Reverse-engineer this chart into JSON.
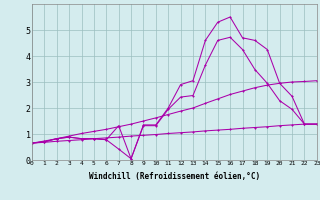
{
  "background_color": "#d4ecee",
  "line_color": "#aa00aa",
  "grid_color": "#9bbfc0",
  "x_min": 0,
  "x_max": 23,
  "y_min": 0,
  "y_max": 6,
  "xlabel": "Windchill (Refroidissement éolien,°C)",
  "xlabel_fontsize": 5.5,
  "ytick_fontsize": 6,
  "xtick_fontsize": 4.5,
  "series1_x": [
    0,
    1,
    2,
    3,
    4,
    5,
    6,
    7,
    8,
    9,
    10,
    11,
    12,
    13,
    14,
    15,
    16,
    17,
    18,
    19,
    20,
    21,
    22,
    23
  ],
  "series1_y": [
    0.65,
    0.7,
    0.82,
    0.88,
    0.82,
    0.82,
    0.78,
    0.42,
    0.05,
    1.35,
    1.35,
    2.0,
    2.9,
    3.05,
    4.6,
    5.3,
    5.5,
    4.7,
    4.6,
    4.25,
    2.95,
    2.45,
    1.38,
    1.38
  ],
  "series2_x": [
    0,
    1,
    2,
    3,
    4,
    5,
    6,
    7,
    8,
    9,
    10,
    11,
    12,
    13,
    14,
    15,
    16,
    17,
    18,
    19,
    20,
    21,
    22,
    23
  ],
  "series2_y": [
    0.65,
    0.7,
    0.82,
    0.88,
    0.82,
    0.82,
    0.78,
    1.32,
    0.05,
    1.32,
    1.32,
    1.95,
    2.42,
    2.48,
    3.65,
    4.6,
    4.72,
    4.25,
    3.48,
    2.95,
    2.28,
    1.95,
    1.38,
    1.38
  ],
  "series3_x": [
    0,
    1,
    2,
    3,
    4,
    5,
    6,
    7,
    8,
    9,
    10,
    11,
    12,
    13,
    14,
    15,
    16,
    17,
    18,
    19,
    20,
    21,
    22,
    23
  ],
  "series3_y": [
    0.65,
    0.68,
    0.72,
    0.75,
    0.78,
    0.82,
    0.85,
    0.88,
    0.92,
    0.95,
    0.98,
    1.02,
    1.05,
    1.08,
    1.12,
    1.15,
    1.18,
    1.22,
    1.25,
    1.28,
    1.32,
    1.35,
    1.38,
    1.38
  ],
  "series4_x": [
    0,
    1,
    2,
    3,
    4,
    5,
    6,
    7,
    8,
    9,
    10,
    11,
    12,
    13,
    14,
    15,
    16,
    17,
    18,
    19,
    20,
    21,
    22,
    23
  ],
  "series4_y": [
    0.65,
    0.73,
    0.82,
    0.92,
    1.02,
    1.1,
    1.18,
    1.28,
    1.38,
    1.5,
    1.62,
    1.75,
    1.88,
    2.0,
    2.18,
    2.35,
    2.52,
    2.65,
    2.78,
    2.88,
    2.95,
    3.0,
    3.02,
    3.05
  ],
  "xtick_labels": [
    "0",
    "1",
    "2",
    "3",
    "4",
    "5",
    "6",
    "7",
    "8",
    "9",
    "10",
    "11",
    "12",
    "13",
    "14",
    "15",
    "16",
    "17",
    "18",
    "19",
    "20",
    "21",
    "22",
    "23"
  ]
}
